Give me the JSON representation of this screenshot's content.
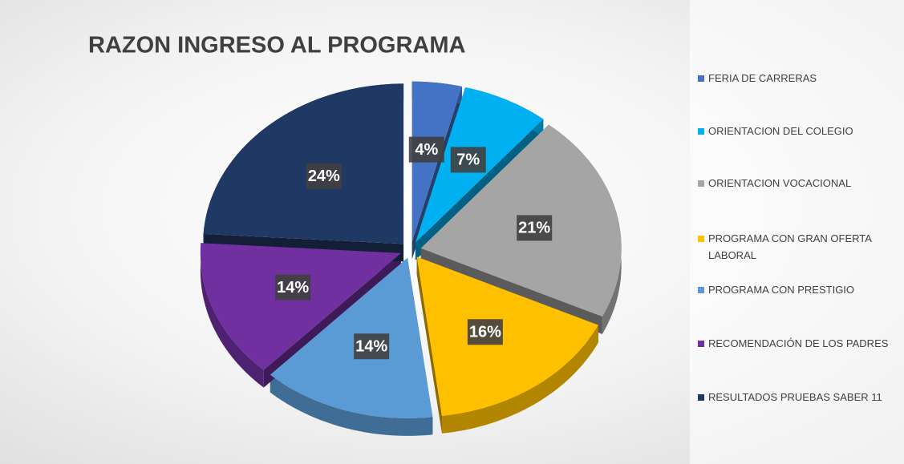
{
  "chart_data": {
    "type": "pie",
    "title": "RAZON INGRESO AL PROGRAMA",
    "categories": [
      "FERIA DE CARRERAS",
      "ORIENTACION DEL COLEGIO",
      "ORIENTACION VOCACIONAL",
      "PROGRAMA CON GRAN OFERTA LABORAL",
      "PROGRAMA CON PRESTIGIO",
      "RECOMENDACIÓN DE LOS PADRES",
      "RESULTADOS PRUEBAS SABER 11"
    ],
    "values": [
      4,
      7,
      21,
      16,
      14,
      14,
      24
    ],
    "value_labels": [
      "4%",
      "7%",
      "21%",
      "16%",
      "14%",
      "14%",
      "24%"
    ],
    "colors": [
      "#4472c4",
      "#00b0f0",
      "#a5a5a5",
      "#ffc000",
      "#5b9bd5",
      "#7030a0",
      "#203864"
    ],
    "legend": "right"
  }
}
